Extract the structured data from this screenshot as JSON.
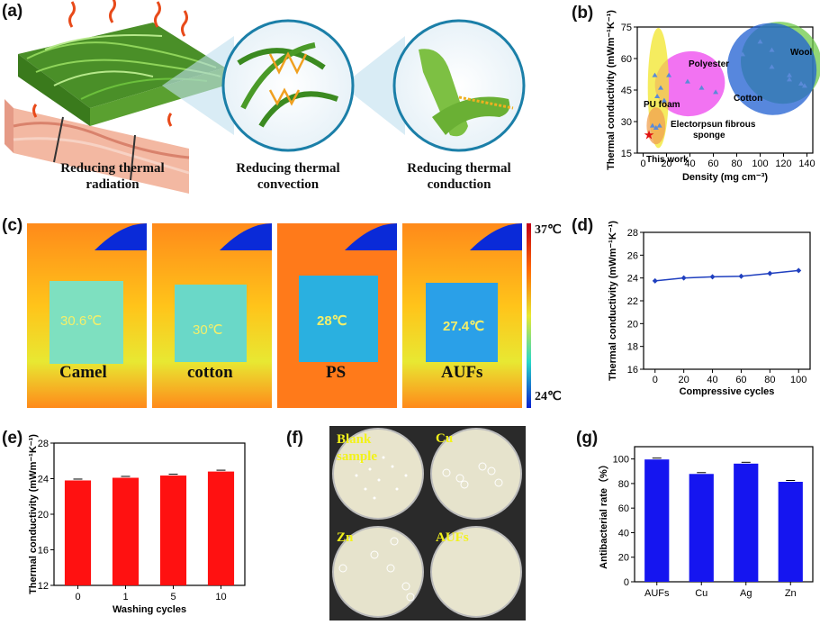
{
  "panel_labels": {
    "a": "(a)",
    "b": "(b)",
    "c": "(c)",
    "d": "(d)",
    "e": "(e)",
    "f": "(f)",
    "g": "(g)"
  },
  "panel_a": {
    "captions": [
      "Reducing thermal radiation",
      "Reducing thermal convection",
      "Reducing thermal conduction"
    ],
    "caption_lines": [
      [
        "Reducing thermal",
        "radiation"
      ],
      [
        "Reducing thermal",
        "convection"
      ],
      [
        "Reducing thermal",
        "conduction"
      ]
    ]
  },
  "panel_c": {
    "samples": [
      {
        "name": "Camel",
        "temp": "30.6℃"
      },
      {
        "name": "cotton",
        "temp": "30℃"
      },
      {
        "name": "PS",
        "temp": "28℃"
      },
      {
        "name": "AUFs",
        "temp": "27.4℃"
      }
    ],
    "scale_max": "37℃",
    "scale_min": "24℃"
  },
  "panel_f": {
    "dishes": [
      "Blank sample",
      "Cu",
      "Zn",
      "AUFs"
    ],
    "dish_lines": [
      [
        "Blank",
        "sample"
      ],
      [
        "Cu"
      ],
      [
        "Zn"
      ],
      [
        "AUFs"
      ]
    ]
  },
  "chart_data": [
    {
      "id": "b",
      "type": "scatter",
      "xlabel": "Density (mg cm⁻³)",
      "ylabel": "Thermal conductivity (mWm⁻¹K⁻¹)",
      "xlim": [
        -5,
        145
      ],
      "ylim": [
        15,
        75
      ],
      "xticks": [
        "0",
        "20",
        "40",
        "60",
        "80",
        "100",
        "120",
        "140"
      ],
      "yticks": [
        "15",
        "30",
        "45",
        "60",
        "75"
      ],
      "groups": [
        {
          "name": "Wool",
          "color": "#6dc94a",
          "points": [
            [
              100,
              68
            ],
            [
              110,
              64
            ],
            [
              125,
              52
            ],
            [
              135,
              48
            ]
          ]
        },
        {
          "name": "Cotton",
          "color": "#1f5fd1",
          "points": [
            [
              85,
              62
            ],
            [
              110,
              56
            ],
            [
              125,
              50
            ],
            [
              138,
              47
            ]
          ]
        },
        {
          "name": "Polyester",
          "color": "#ee44ee",
          "points": [
            [
              22,
              52
            ],
            [
              38,
              49
            ],
            [
              50,
              46
            ],
            [
              62,
              44
            ]
          ]
        },
        {
          "name": "PU foam",
          "color": "#f2e52a",
          "points": [
            [
              10,
              52
            ],
            [
              15,
              46
            ],
            [
              12,
              42
            ],
            [
              18,
              40
            ]
          ]
        },
        {
          "name": "Electorpsun fibrous sponge",
          "color": "#f0a050",
          "points": [
            [
              8,
              28
            ],
            [
              11,
              27
            ],
            [
              14,
              28
            ]
          ]
        },
        {
          "name": "This work",
          "color": "#e01010",
          "points": [
            [
              5,
              23.7
            ]
          ]
        }
      ],
      "annotations": [
        "Wool",
        "Polyester",
        "Cotton",
        "PU foam",
        "Electorpsun fibrous",
        "sponge",
        "This work"
      ]
    },
    {
      "id": "d",
      "type": "line",
      "xlabel": "Compressive cycles",
      "ylabel": "Thermal conductivity (mWm⁻¹K⁻¹)",
      "x": [
        0,
        20,
        40,
        60,
        80,
        100
      ],
      "y": [
        23.75,
        24.0,
        24.1,
        24.15,
        24.4,
        24.65
      ],
      "xlim": [
        -8,
        108
      ],
      "ylim": [
        16,
        28
      ],
      "xticks": [
        "0",
        "20",
        "40",
        "60",
        "80",
        "100"
      ],
      "yticks": [
        "16",
        "18",
        "20",
        "22",
        "24",
        "26",
        "28"
      ],
      "color": "#1f3fbf"
    },
    {
      "id": "e",
      "type": "bar",
      "xlabel": "Washing cycles",
      "ylabel": "Thermal conductivity (mWm⁻¹K⁻¹)",
      "categories": [
        "0",
        "1",
        "5",
        "10"
      ],
      "values": [
        23.8,
        24.1,
        24.35,
        24.8
      ],
      "ylim": [
        12,
        28
      ],
      "yticks": [
        "12",
        "16",
        "20",
        "24",
        "28"
      ],
      "color": "#ff1111"
    },
    {
      "id": "g",
      "type": "bar",
      "xlabel": "",
      "ylabel": "Antibacterial rate（%）",
      "categories": [
        "AUFs",
        "Cu",
        "Ag",
        "Zn"
      ],
      "values": [
        99.6,
        87.8,
        96.2,
        81.4
      ],
      "ylim": [
        0,
        110
      ],
      "yticks": [
        "0",
        "20",
        "40",
        "60",
        "80",
        "100"
      ],
      "color": "#1515f0"
    }
  ]
}
